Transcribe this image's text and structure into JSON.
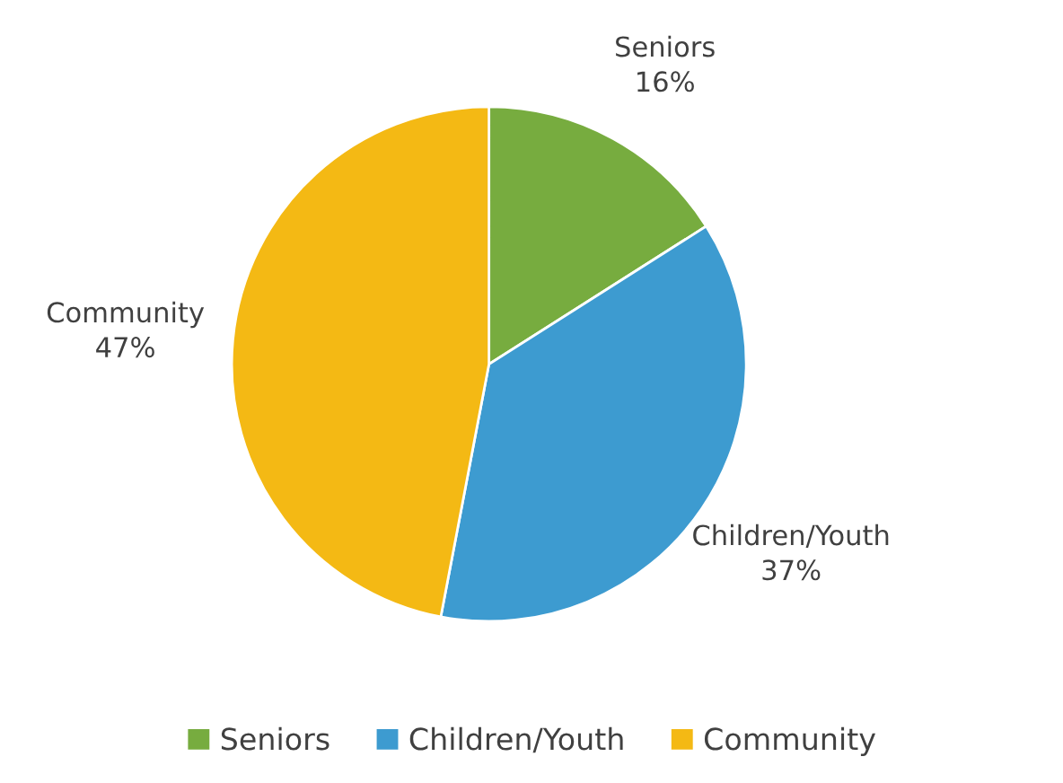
{
  "chart_data": {
    "type": "pie",
    "categories": [
      "Seniors",
      "Children/Youth",
      "Community"
    ],
    "values": [
      16,
      37,
      47
    ],
    "colors": [
      "#77ac3f",
      "#3d9bd0",
      "#f4b914"
    ],
    "value_labels": [
      "16%",
      "37%",
      "47%"
    ],
    "legend": "bottom"
  }
}
